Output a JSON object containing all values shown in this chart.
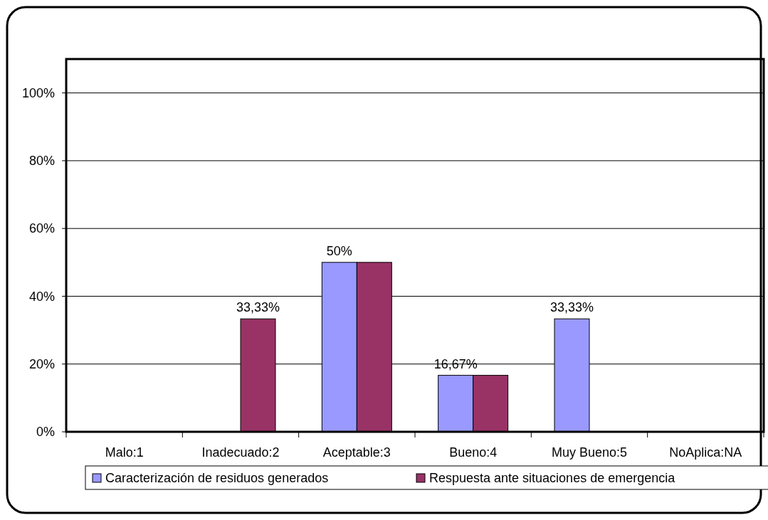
{
  "chart_data": {
    "type": "bar",
    "categories": [
      "Malo:1",
      "Inadecuado:2",
      "Aceptable:3",
      "Bueno:4",
      "Muy Bueno:5",
      "NoAplica:NA"
    ],
    "series": [
      {
        "name": "Caracterización de residuos generados",
        "color": "#9999ff",
        "values": [
          0,
          0,
          50,
          16.67,
          33.33,
          0
        ],
        "value_labels": [
          null,
          null,
          "50%",
          "16,67%",
          "33,33%",
          null
        ]
      },
      {
        "name": "Respuesta ante situaciones de emergencia",
        "color": "#993366",
        "values": [
          0,
          33.33,
          50,
          16.67,
          0,
          0
        ],
        "value_labels": [
          null,
          "33,33%",
          null,
          null,
          null,
          null
        ]
      }
    ],
    "ylim": [
      0,
      110
    ],
    "yticks": [
      {
        "value": 0,
        "label": "0%"
      },
      {
        "value": 20,
        "label": "20%"
      },
      {
        "value": 40,
        "label": "40%"
      },
      {
        "value": 60,
        "label": "60%"
      },
      {
        "value": 80,
        "label": "80%"
      },
      {
        "value": 100,
        "label": "100%"
      }
    ],
    "grid": "y",
    "legend": "bottom"
  }
}
